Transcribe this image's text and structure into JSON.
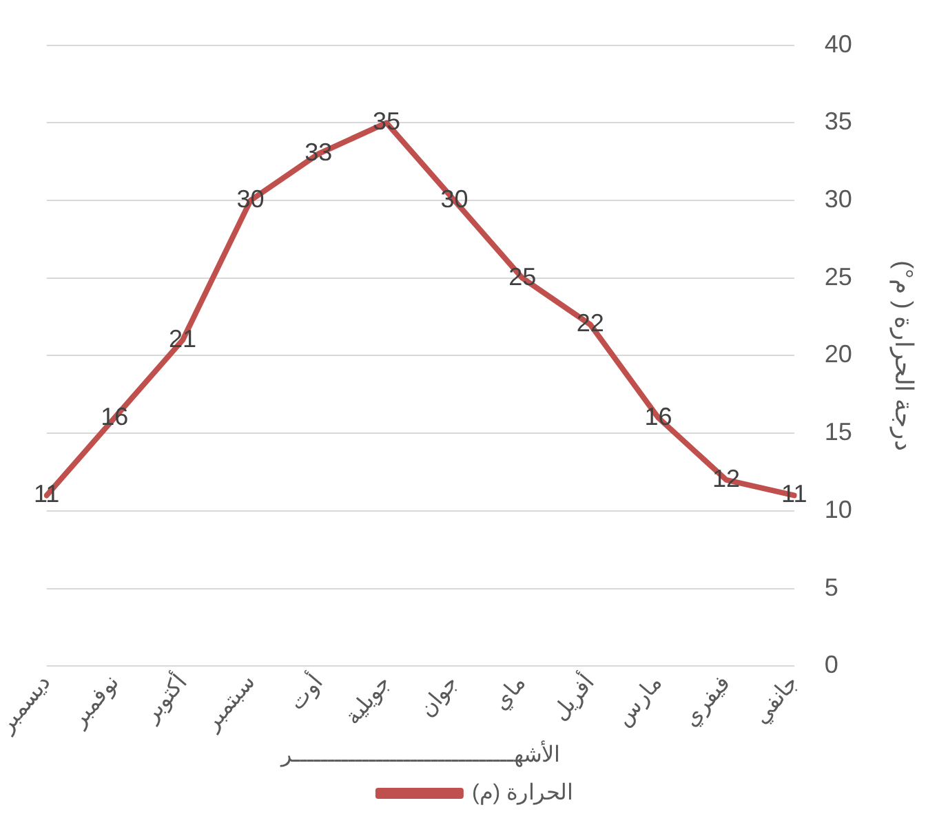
{
  "chart_data": {
    "type": "line",
    "xlabel": "الأشهــــــــــــــــــــــــــــــــر",
    "ylabel": "درجة الحرارة ( م°)",
    "categories": [
      "ديسمبر",
      "نوفمبر",
      "أكتوبر",
      "سبتمبر",
      "أوت",
      "جويلية",
      "جوان",
      "ماي",
      "أفريل",
      "مارس",
      "فيفري",
      "جانفي"
    ],
    "series": [
      {
        "name": "الحرارة (م)",
        "color": "#c0504d",
        "values": [
          11,
          16,
          21,
          30,
          33,
          35,
          30,
          25,
          22,
          16,
          12,
          11
        ]
      }
    ],
    "ylim": [
      0,
      40
    ],
    "yticks": [
      0,
      5,
      10,
      15,
      20,
      25,
      30,
      35,
      40
    ],
    "grid": "y",
    "legend": "bottom",
    "data_labels": true,
    "marker": "none",
    "line_style": "solid"
  }
}
